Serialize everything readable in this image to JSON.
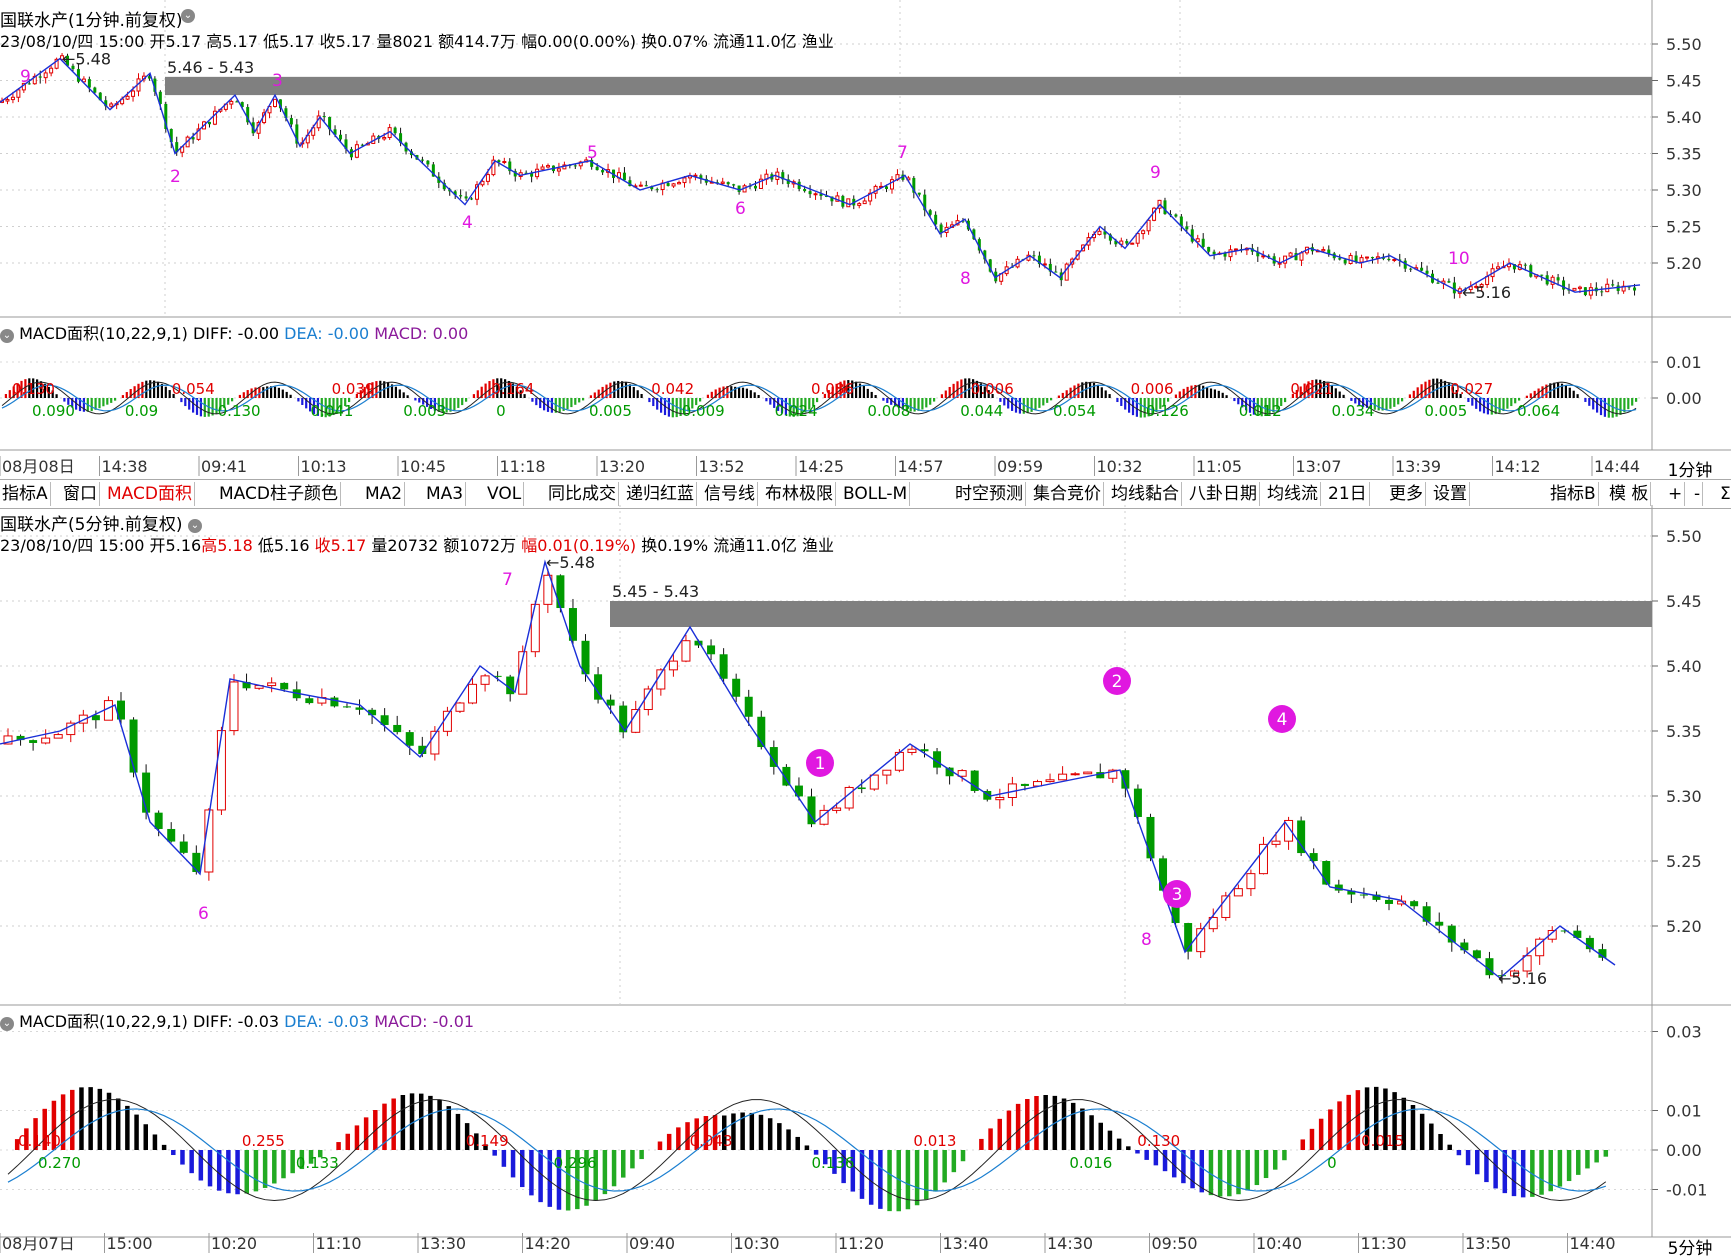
{
  "top_panel": {
    "title": "国联水产(1分钟.前复权)",
    "info_prefix": "23/08/10/四 15:00 开5.17 高5.17 低5.17 收5.17 量8021 额414.7万 幅0.00(0.00%) 换0.07% 流通11.0亿 渔业",
    "y_ticks": [
      "5.50",
      "5.45",
      "5.40",
      "5.35",
      "5.30",
      "5.25",
      "5.20"
    ],
    "high_label": "5.48",
    "low_label": "5.16",
    "zone_label": "5.46 - 5.43",
    "wave_numbers": [
      "9",
      "2",
      "3",
      "4",
      "5",
      "6",
      "7",
      "8",
      "9",
      "10"
    ]
  },
  "top_macd": {
    "label": "MACD面积(10,22,9,1)",
    "diff_text": "DIFF: -0.00",
    "dea_text": "DEA: -0.00",
    "macd_text": "MACD: 0.00",
    "y_ticks": [
      "0.01",
      "0.00"
    ],
    "area_values_red": [
      "0.130",
      "0.054",
      "0.039",
      "0.164",
      "0.042",
      "0.086",
      "0.006",
      "0.006",
      "0.021",
      "0.027"
    ],
    "area_values_green": [
      "0.090",
      "0.09",
      "0.130",
      "0.041",
      "0.003",
      "0",
      "0.005",
      "0.009",
      "0.024",
      "0.008",
      "0.044",
      "0.054",
      "0.126",
      "0.012",
      "0.034",
      "0.005",
      "0.064"
    ]
  },
  "top_x_axis": [
    "08月08日",
    "14:38",
    "09:41",
    "10:13",
    "10:45",
    "11:18",
    "13:20",
    "13:52",
    "14:25",
    "14:57",
    "09:59",
    "10:32",
    "11:05",
    "13:07",
    "13:39",
    "14:12",
    "14:44"
  ],
  "top_period": "1分钟",
  "toolbar": {
    "tabs": [
      "指标A",
      "窗口",
      "MACD面积",
      "MACD柱子颜色",
      "MA2",
      "MA3",
      "VOL",
      "同比成交",
      "递归红蓝",
      "信号线",
      "布林极限",
      "BOLL-M",
      "时空预测",
      "集合竞价",
      "均线黏合",
      "八卦日期",
      "均线流",
      "21日",
      "更多",
      "设置"
    ],
    "right_tabs": [
      "指标B",
      "模 板",
      "+",
      "-",
      "Σ"
    ],
    "active": "MACD面积"
  },
  "bottom_panel": {
    "title": "国联水产(5分钟.前复权)",
    "date": "23/08/10/四 15:00",
    "open": "开5.16",
    "high": "高5.18",
    "low": "低5.16",
    "close": "收5.17",
    "volume": "量20732",
    "amount": "额1072万",
    "change": "幅0.01(0.19%)",
    "turnover": "换0.19%",
    "float": "流通11.0亿",
    "industry": "渔业",
    "y_ticks": [
      "5.50",
      "5.45",
      "5.40",
      "5.35",
      "5.30",
      "5.25",
      "5.20"
    ],
    "high_label": "5.48",
    "low_label": "5.16",
    "zone_label": "5.45 - 5.43",
    "wave_numbers": [
      "7",
      "6",
      "8"
    ],
    "circled_points": [
      "1",
      "2",
      "3",
      "4"
    ]
  },
  "bottom_macd": {
    "label": "MACD面积(10,22,9,1)",
    "diff_text": "DIFF: -0.03",
    "dea_text": "DEA: -0.03",
    "macd_text": "MACD: -0.01",
    "y_ticks": [
      "0.03",
      "0.01",
      "0.00",
      "-0.01"
    ],
    "area_values_red": [
      "0.140",
      "0.255",
      "0.149",
      "0.043",
      "0.013",
      "0.130",
      "0.015"
    ],
    "area_values_green": [
      "0.270",
      "0.133",
      "0.296",
      "0.136",
      "0.016",
      "0"
    ]
  },
  "bottom_x_axis": [
    "08月07日",
    "15:00",
    "10:20",
    "11:10",
    "13:30",
    "14:20",
    "09:40",
    "10:30",
    "11:20",
    "13:40",
    "14:30",
    "09:50",
    "10:40",
    "11:30",
    "13:50",
    "14:40"
  ],
  "bottom_period": "5分钟",
  "colors": {
    "up": "#e10000",
    "down": "#009a00",
    "wave_line": "#1a2fd8",
    "zone": "#808080",
    "magenta": "#e018e0",
    "dea": "#1b7fd0",
    "macd_purple": "#8a1a9a"
  }
}
